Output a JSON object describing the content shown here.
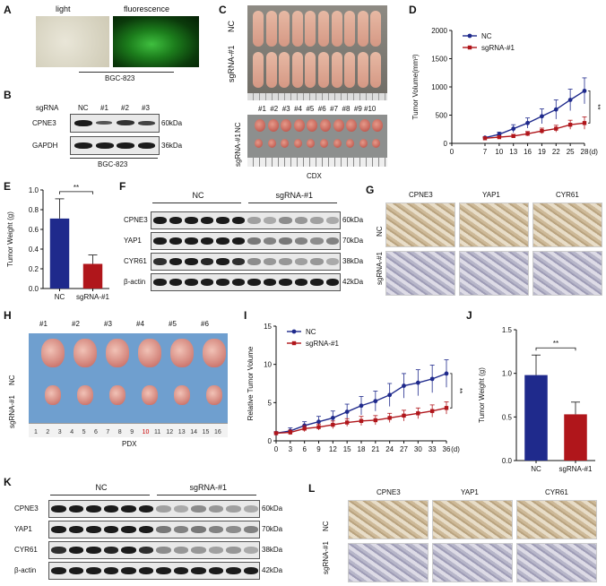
{
  "panels": {
    "A": "A",
    "B": "B",
    "C": "C",
    "D": "D",
    "E": "E",
    "F": "F",
    "G": "G",
    "H": "H",
    "I": "I",
    "J": "J",
    "K": "K",
    "L": "L"
  },
  "panelA": {
    "light": "light",
    "fluorescence": "fluorescence",
    "cell": "BGC-823"
  },
  "panelB": {
    "sgRNA": "sgRNA",
    "lanes": [
      "NC",
      "#1",
      "#2",
      "#3"
    ],
    "rows": [
      "CPNE3",
      "GAPDH"
    ],
    "sizes": [
      "60kDa",
      "36kDa"
    ],
    "cell": "BGC-823"
  },
  "panelC": {
    "nc": "NC",
    "sg": "sgRNA-#1",
    "nums": [
      "#1",
      "#2",
      "#3",
      "#4",
      "#5",
      "#6",
      "#7",
      "#8",
      "#9",
      "#10"
    ],
    "caption": "CDX"
  },
  "panelF": {
    "groups": [
      "NC",
      "sgRNA-#1"
    ],
    "rows": [
      "CPNE3",
      "YAP1",
      "CYR61",
      "β-actin"
    ],
    "sizes": [
      "60kDa",
      "70kDa",
      "38kDa",
      "42kDa"
    ]
  },
  "panelG": {
    "cols": [
      "CPNE3",
      "YAP1",
      "CYR61"
    ],
    "rows": [
      "NC",
      "sgRNA-#1"
    ]
  },
  "panelH": {
    "nums": [
      "#1",
      "#2",
      "#3",
      "#4",
      "#5",
      "#6"
    ],
    "nc": "NC",
    "sg": "sgRNA-#1",
    "caption": "PDX",
    "ruler": [
      "1",
      "2",
      "3",
      "4",
      "5",
      "6",
      "7",
      "8",
      "9",
      "10",
      "11",
      "12",
      "13",
      "14",
      "15",
      "16"
    ]
  },
  "panelK": {
    "groups": [
      "NC",
      "sgRNA-#1"
    ],
    "rows": [
      "CPNE3",
      "YAP1",
      "CYR61",
      "β-actin"
    ],
    "sizes": [
      "60kDa",
      "70kDa",
      "38kDa",
      "42kDa"
    ]
  },
  "panelL": {
    "cols": [
      "CPNE3",
      "YAP1",
      "CYR61"
    ],
    "rows": [
      "NC",
      "sgRNA-#1"
    ]
  },
  "colors": {
    "nc": "#1f2a8c",
    "sg": "#b0161b"
  },
  "chart_data": [
    {
      "id": "D",
      "type": "line",
      "ylabel": "Tumor Volume(mm³)",
      "xunit": "(d)",
      "x": [
        7,
        10,
        13,
        16,
        19,
        22,
        25,
        28
      ],
      "xticks": [
        "0",
        "7",
        "10",
        "13",
        "16",
        "19",
        "22",
        "25",
        "28"
      ],
      "yticks": [
        "0",
        "500",
        "1000",
        "1500",
        "2000"
      ],
      "ylim": [
        0,
        2000
      ],
      "series": [
        {
          "name": "NC",
          "values": [
            100,
            160,
            260,
            360,
            480,
            600,
            770,
            930
          ],
          "errors": [
            15,
            40,
            70,
            90,
            130,
            170,
            190,
            230
          ]
        },
        {
          "name": "sgRNA-#1",
          "values": [
            90,
            110,
            130,
            170,
            220,
            260,
            330,
            360
          ],
          "errors": [
            10,
            20,
            30,
            40,
            50,
            60,
            80,
            110
          ]
        }
      ],
      "significance": "**"
    },
    {
      "id": "E",
      "type": "bar",
      "ylabel": "Tumor Weight (g)",
      "categories": [
        "NC",
        "sgRNA-#1"
      ],
      "values": [
        0.71,
        0.25
      ],
      "errors": [
        0.2,
        0.09
      ],
      "yticks": [
        "0.0",
        "0.2",
        "0.4",
        "0.6",
        "0.8",
        "1.0"
      ],
      "ylim": [
        0,
        1.0
      ],
      "significance": "**"
    },
    {
      "id": "I",
      "type": "line",
      "ylabel": "Relative Tumor Volume",
      "xunit": "(d)",
      "x": [
        0,
        3,
        6,
        9,
        12,
        15,
        18,
        21,
        24,
        27,
        30,
        33,
        36
      ],
      "xticks": [
        "0",
        "3",
        "6",
        "9",
        "12",
        "15",
        "18",
        "21",
        "24",
        "27",
        "30",
        "33",
        "36"
      ],
      "yticks": [
        "0",
        "5",
        "10",
        "15"
      ],
      "ylim": [
        0,
        15
      ],
      "series": [
        {
          "name": "NC",
          "values": [
            1,
            1.3,
            2,
            2.5,
            3,
            3.8,
            4.6,
            5.2,
            6,
            7.2,
            7.6,
            8.1,
            8.8
          ],
          "errors": [
            0.2,
            0.4,
            0.5,
            0.7,
            0.9,
            1,
            1.2,
            1.3,
            1.5,
            1.6,
            1.7,
            1.8,
            1.8
          ]
        },
        {
          "name": "sgRNA-#1",
          "values": [
            1,
            1.1,
            1.6,
            1.8,
            2.1,
            2.4,
            2.6,
            2.7,
            3,
            3.3,
            3.6,
            3.9,
            4.3
          ],
          "errors": [
            0.1,
            0.3,
            0.4,
            0.4,
            0.5,
            0.5,
            0.6,
            0.6,
            0.6,
            0.7,
            0.7,
            0.8,
            0.8
          ]
        }
      ],
      "significance": "**"
    },
    {
      "id": "J",
      "type": "bar",
      "ylabel": "Tumor Weight (g)",
      "categories": [
        "NC",
        "sgRNA-#1"
      ],
      "values": [
        0.98,
        0.53
      ],
      "errors": [
        0.23,
        0.14
      ],
      "yticks": [
        "0.0",
        "0.5",
        "1.0",
        "1.5"
      ],
      "ylim": [
        0,
        1.5
      ],
      "significance": "**"
    }
  ]
}
